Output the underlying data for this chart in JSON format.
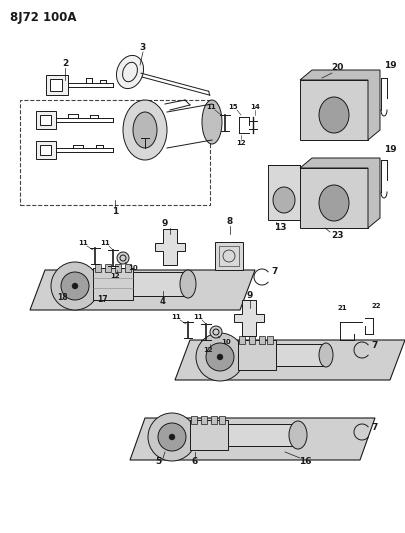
{
  "title": "8J72 100A",
  "bg_color": "#ffffff",
  "line_color": "#1a1a1a",
  "figsize": [
    4.05,
    5.33
  ],
  "dpi": 100,
  "gray_panel": "#d0d0d0",
  "light_gray": "#e8e8e8",
  "mid_gray": "#b0b0b0"
}
